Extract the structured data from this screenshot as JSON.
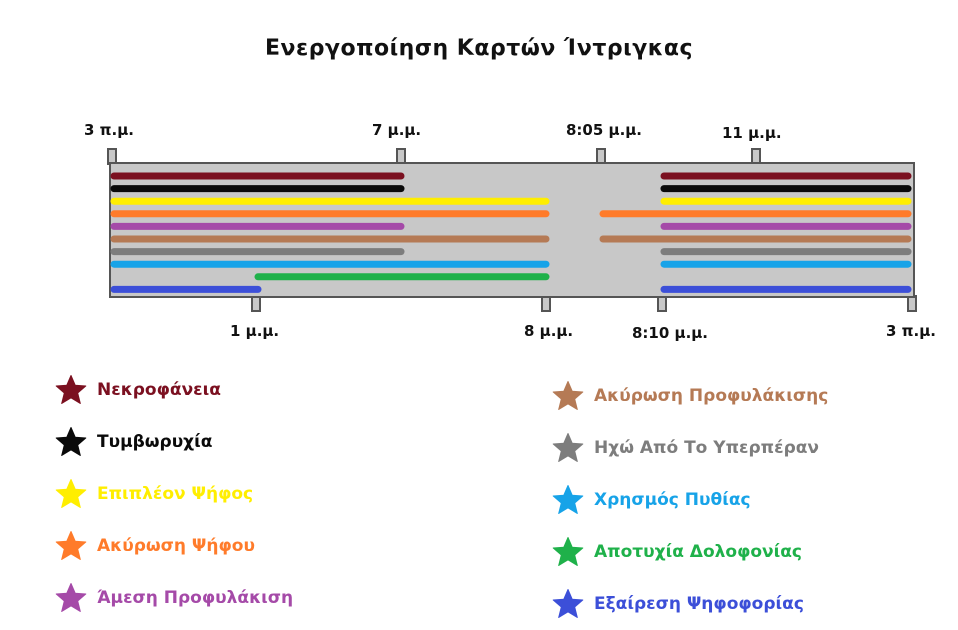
{
  "title": "Ενεργοποίηση Καρτών Ίντριγκας",
  "time_labels": {
    "top": [
      {
        "id": "t0",
        "text": "3 π.μ."
      },
      {
        "id": "t1",
        "text": "7 μ.μ."
      },
      {
        "id": "t2",
        "text": "8:05 μ.μ."
      },
      {
        "id": "t3",
        "text": "11 μ.μ."
      }
    ],
    "bottom": [
      {
        "id": "b0",
        "text": "1 μ.μ."
      },
      {
        "id": "b1",
        "text": "8 μ.μ."
      },
      {
        "id": "b2",
        "text": "8:10 μ.μ."
      },
      {
        "id": "b3",
        "text": "3 π.μ."
      }
    ]
  },
  "cards": [
    {
      "name": "Νεκροφάνεια",
      "color": "#7b1020",
      "windows": [
        [
          "3 π.μ.",
          "7 μ.μ."
        ],
        [
          "8:10 μ.μ.",
          "3 π.μ."
        ]
      ]
    },
    {
      "name": "Τυμβωρυχία",
      "color": "#0a0a0a",
      "windows": [
        [
          "3 π.μ.",
          "7 μ.μ."
        ],
        [
          "8:10 μ.μ.",
          "3 π.μ."
        ]
      ]
    },
    {
      "name": "Επιπλέον Ψήφος",
      "color": "#ffee00",
      "windows": [
        [
          "3 π.μ.",
          "8 μ.μ."
        ],
        [
          "8:10 μ.μ.",
          "3 π.μ."
        ]
      ]
    },
    {
      "name": "Ακύρωση Ψήφου",
      "color": "#ff7b2a",
      "windows": [
        [
          "3 π.μ.",
          "8 μ.μ."
        ],
        [
          "8:05 μ.μ.",
          "3 π.μ."
        ]
      ]
    },
    {
      "name": "Άμεση Προφυλάκιση",
      "color": "#a54aa8",
      "windows": [
        [
          "3 π.μ.",
          "7 μ.μ."
        ],
        [
          "8:10 μ.μ.",
          "3 π.μ."
        ]
      ]
    },
    {
      "name": "Ακύρωση Προφυλάκισης",
      "color": "#b57a55",
      "windows": [
        [
          "3 π.μ.",
          "8 μ.μ."
        ],
        [
          "8:05 μ.μ.",
          "3 π.μ."
        ]
      ]
    },
    {
      "name": "Ηχώ Από Το Υπερπέραν",
      "color": "#7d7d7d",
      "windows": [
        [
          "3 π.μ.",
          "7 μ.μ."
        ],
        [
          "8:10 μ.μ.",
          "3 π.μ."
        ]
      ]
    },
    {
      "name": "Χρησμός Πυθίας",
      "color": "#17a3e8",
      "windows": [
        [
          "3 π.μ.",
          "8 μ.μ."
        ],
        [
          "8:10 μ.μ.",
          "3 π.μ."
        ]
      ]
    },
    {
      "name": "Αποτυχία Δολοφονίας",
      "color": "#1fb14a",
      "windows": [
        [
          "1 μ.μ.",
          "8 μ.μ."
        ]
      ]
    },
    {
      "name": "Εξαίρεση Ψηφοφορίας",
      "color": "#3c4fd8",
      "windows": [
        [
          "3 π.μ.",
          "1 μ.μ."
        ],
        [
          "8:10 μ.μ.",
          "3 π.μ."
        ]
      ]
    }
  ],
  "legend": {
    "left": [
      0,
      1,
      2,
      3,
      4
    ],
    "right": [
      5,
      6,
      7,
      8,
      9
    ]
  }
}
